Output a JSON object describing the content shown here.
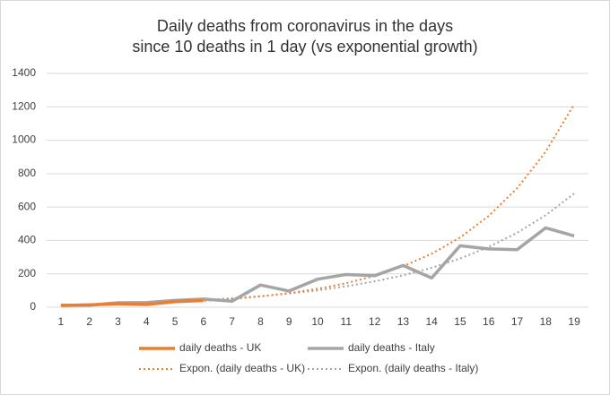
{
  "chart_data": {
    "type": "line",
    "title": [
      "Daily deaths from coronavirus in the days",
      "since 10 deaths in 1 day (vs exponential growth)"
    ],
    "categories": [
      "1",
      "2",
      "3",
      "4",
      "5",
      "6",
      "7",
      "8",
      "9",
      "10",
      "11",
      "12",
      "13",
      "14",
      "15",
      "16",
      "17",
      "18",
      "19"
    ],
    "series": [
      {
        "name": "daily deaths - UK",
        "color": "#ed7d31",
        "dash": "solid",
        "values": [
          10,
          14,
          20,
          16,
          33,
          40,
          null,
          null,
          null,
          null,
          null,
          null,
          null,
          null,
          null,
          null,
          null,
          null,
          null
        ]
      },
      {
        "name": "daily deaths - Italy",
        "color": "#a5a5a5",
        "dash": "solid",
        "values": [
          12,
          12,
          27,
          28,
          41,
          49,
          36,
          133,
          97,
          168,
          196,
          189,
          250,
          175,
          368,
          349,
          345,
          475,
          427
        ]
      },
      {
        "name": "Expon. (daily deaths - UK)",
        "color": "#ed7d31",
        "dash": "dotted",
        "values": [
          10,
          13,
          17,
          22,
          29,
          38,
          50,
          65,
          85,
          110,
          144,
          188,
          245,
          320,
          418,
          546,
          713,
          931,
          1216
        ]
      },
      {
        "name": "Expon. (daily deaths - Italy)",
        "color": "#a5a5a5",
        "dash": "dotted",
        "values": [
          15,
          18.5,
          23,
          28,
          35,
          43,
          54,
          66,
          82,
          101,
          125,
          155,
          191,
          236,
          292,
          361,
          446,
          551,
          681
        ]
      }
    ],
    "ylim": [
      0,
      1400
    ],
    "yticks": [
      0,
      200,
      400,
      600,
      800,
      1000,
      1200,
      1400
    ],
    "grid": true,
    "legend": "bottom"
  }
}
